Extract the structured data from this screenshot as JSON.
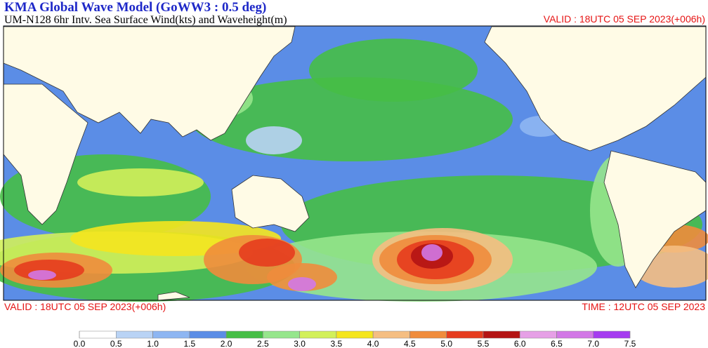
{
  "header": {
    "title": "KMA  Global Wave Model (GoWW3 : 0.5 deg)",
    "subtitle": "UM-N128  6hr Intv. Sea Surface Wind(kts) and Waveheight(m)",
    "valid_top": "VALID : 18UTC 05 SEP 2023(+006h)"
  },
  "footer": {
    "valid": "VALID : 18UTC 05 SEP 2023(+006h)",
    "time": "TIME : 12UTC 05 SEP 2023"
  },
  "legend": {
    "ticks": [
      {
        "value": 0,
        "label": "0.0"
      },
      {
        "value": 0.5,
        "label": "0.5"
      },
      {
        "value": 1,
        "label": "1.0"
      },
      {
        "value": 1.5,
        "label": "1.5"
      },
      {
        "value": 2,
        "label": "2.0"
      },
      {
        "value": 2.5,
        "label": "2.5"
      },
      {
        "value": 3,
        "label": "3.0"
      },
      {
        "value": 3.5,
        "label": "3.5"
      },
      {
        "value": 4,
        "label": "4.0"
      },
      {
        "value": 4.5,
        "label": "4.5"
      },
      {
        "value": 5,
        "label": "5.0"
      },
      {
        "value": 5.5,
        "label": "5.5"
      },
      {
        "value": 6,
        "label": "6.0"
      },
      {
        "value": 6.5,
        "label": "6.5"
      },
      {
        "value": 7,
        "label": "7.0"
      },
      {
        "value": 7.5,
        "label": "7.5"
      }
    ],
    "colors": [
      "#ffffff",
      "#b9d3f5",
      "#8eb6f2",
      "#5b8de6",
      "#46be46",
      "#96e68c",
      "#d2f05a",
      "#f5e61e",
      "#f5be82",
      "#f08c3c",
      "#e63c1e",
      "#b41414",
      "#e6a0e6",
      "#d278e6",
      "#a53cf0"
    ]
  }
}
